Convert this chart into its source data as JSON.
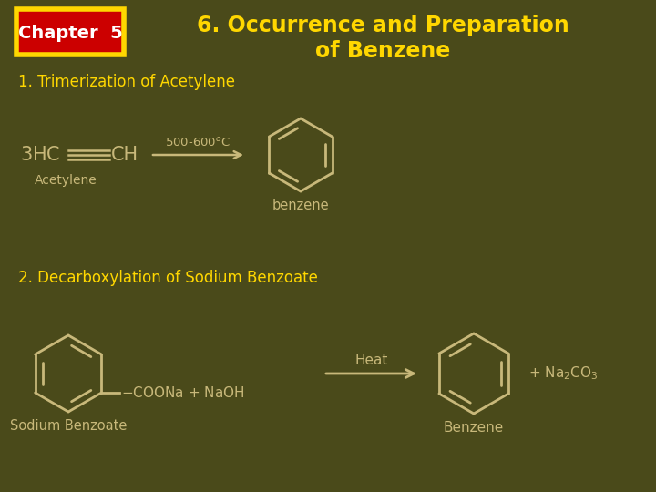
{
  "bg_color": "#4a4a1a",
  "title_text1": "6. Occurrence and Preparation",
  "title_text2": "of Benzene",
  "title_color": "#FFD700",
  "chapter_box_bg": "#CC0000",
  "chapter_box_border": "#FFD700",
  "chapter_text": "Chapter  5",
  "chapter_text_color": "#FFFFFF",
  "section1_text": "1. Trimerization of Acetylene",
  "section2_text": "2. Decarboxylation of Sodium Benzoate",
  "text_color": "#FFD700",
  "structure_color": "#C8B87A",
  "label_color": "#C8B87A",
  "figsize": [
    7.2,
    5.4
  ],
  "dpi": 100
}
